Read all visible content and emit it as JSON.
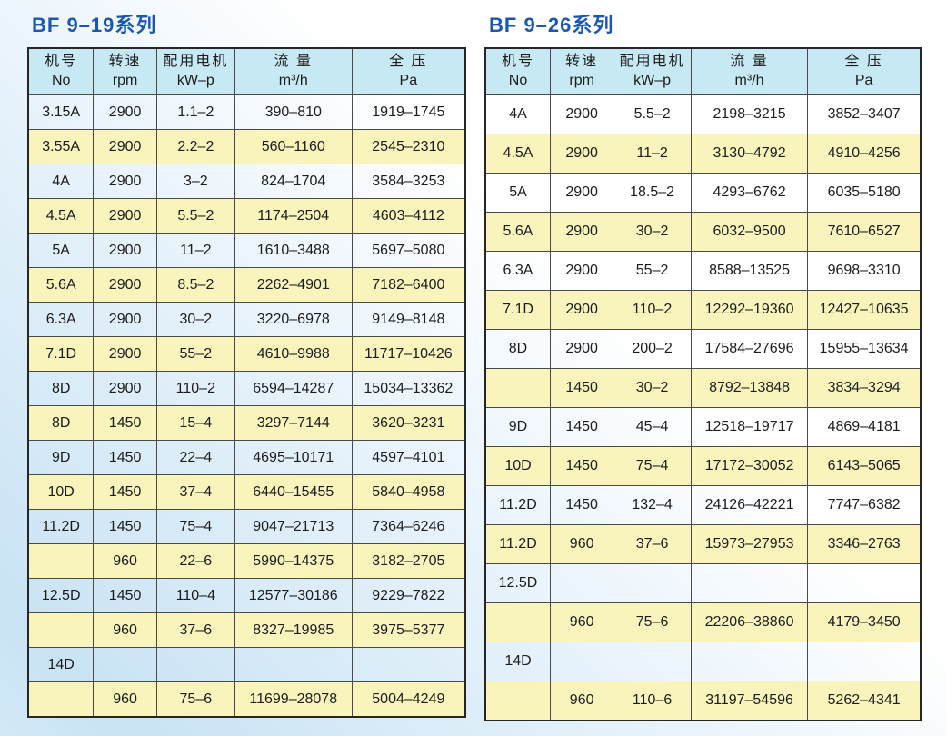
{
  "colors": {
    "title": "#1a57b2",
    "header_bg": "#c6e9f4",
    "row_alt_bg": "#f8f4bb",
    "border_outer": "#262626",
    "border_inner": "#4a4a4a",
    "text": "#1c1c1c",
    "page_corner_blue": "#c9e3f4"
  },
  "tables": [
    {
      "title": "BF 9–19系列",
      "columns": [
        {
          "zh": "机号",
          "en": "No"
        },
        {
          "zh": "转速",
          "en": "rpm"
        },
        {
          "zh": "配用电机",
          "en": "kW–p"
        },
        {
          "zh": "流 量",
          "en": "m³/h"
        },
        {
          "zh": "全 压",
          "en": "Pa"
        }
      ],
      "rows": [
        [
          "3.15A",
          "2900",
          "1.1–2",
          "390–810",
          "1919–1745"
        ],
        [
          "3.55A",
          "2900",
          "2.2–2",
          "560–1160",
          "2545–2310"
        ],
        [
          "4A",
          "2900",
          "3–2",
          "824–1704",
          "3584–3253"
        ],
        [
          "4.5A",
          "2900",
          "5.5–2",
          "1174–2504",
          "4603–4112"
        ],
        [
          "5A",
          "2900",
          "11–2",
          "1610–3488",
          "5697–5080"
        ],
        [
          "5.6A",
          "2900",
          "8.5–2",
          "2262–4901",
          "7182–6400"
        ],
        [
          "6.3A",
          "2900",
          "30–2",
          "3220–6978",
          "9149–8148"
        ],
        [
          "7.1D",
          "2900",
          "55–2",
          "4610–9988",
          "11717–10426"
        ],
        [
          "8D",
          "2900",
          "110–2",
          "6594–14287",
          "15034–13362"
        ],
        [
          "8D",
          "1450",
          "15–4",
          "3297–7144",
          "3620–3231"
        ],
        [
          "9D",
          "1450",
          "22–4",
          "4695–10171",
          "4597–4101"
        ],
        [
          "10D",
          "1450",
          "37–4",
          "6440–15455",
          "5840–4958"
        ],
        [
          "11.2D",
          "1450",
          "75–4",
          "9047–21713",
          "7364–6246"
        ],
        [
          "",
          "960",
          "22–6",
          "5990–14375",
          "3182–2705"
        ],
        [
          "12.5D",
          "1450",
          "110–4",
          "12577–30186",
          "9229–7822"
        ],
        [
          "",
          "960",
          "37–6",
          "8327–19985",
          "3975–5377"
        ],
        [
          "14D",
          "",
          "",
          "",
          ""
        ],
        [
          "",
          "960",
          "75–6",
          "11699–28078",
          "5004–4249"
        ]
      ]
    },
    {
      "title": "BF 9–26系列",
      "columns": [
        {
          "zh": "机号",
          "en": "No"
        },
        {
          "zh": "转速",
          "en": "rpm"
        },
        {
          "zh": "配用电机",
          "en": "kW–p"
        },
        {
          "zh": "流 量",
          "en": "m³/h"
        },
        {
          "zh": "全 压",
          "en": "Pa"
        }
      ],
      "rows": [
        [
          "4A",
          "2900",
          "5.5–2",
          "2198–3215",
          "3852–3407"
        ],
        [
          "4.5A",
          "2900",
          "11–2",
          "3130–4792",
          "4910–4256"
        ],
        [
          "5A",
          "2900",
          "18.5–2",
          "4293–6762",
          "6035–5180"
        ],
        [
          "5.6A",
          "2900",
          "30–2",
          "6032–9500",
          "7610–6527"
        ],
        [
          "6.3A",
          "2900",
          "55–2",
          "8588–13525",
          "9698–3310"
        ],
        [
          "7.1D",
          "2900",
          "110–2",
          "12292–19360",
          "12427–10635"
        ],
        [
          "8D",
          "2900",
          "200–2",
          "17584–27696",
          "15955–13634"
        ],
        [
          "",
          "1450",
          "30–2",
          "8792–13848",
          "3834–3294"
        ],
        [
          "9D",
          "1450",
          "45–4",
          "12518–19717",
          "4869–4181"
        ],
        [
          "10D",
          "1450",
          "75–4",
          "17172–30052",
          "6143–5065"
        ],
        [
          "11.2D",
          "1450",
          "132–4",
          "24126–42221",
          "7747–6382"
        ],
        [
          "11.2D",
          "960",
          "37–6",
          "15973–27953",
          "3346–2763"
        ],
        [
          "12.5D",
          "",
          "",
          "",
          ""
        ],
        [
          "",
          "960",
          "75–6",
          "22206–38860",
          "4179–3450"
        ],
        [
          "14D",
          "",
          "",
          "",
          ""
        ],
        [
          "",
          "960",
          "110–6",
          "31197–54596",
          "5262–4341"
        ]
      ]
    }
  ]
}
